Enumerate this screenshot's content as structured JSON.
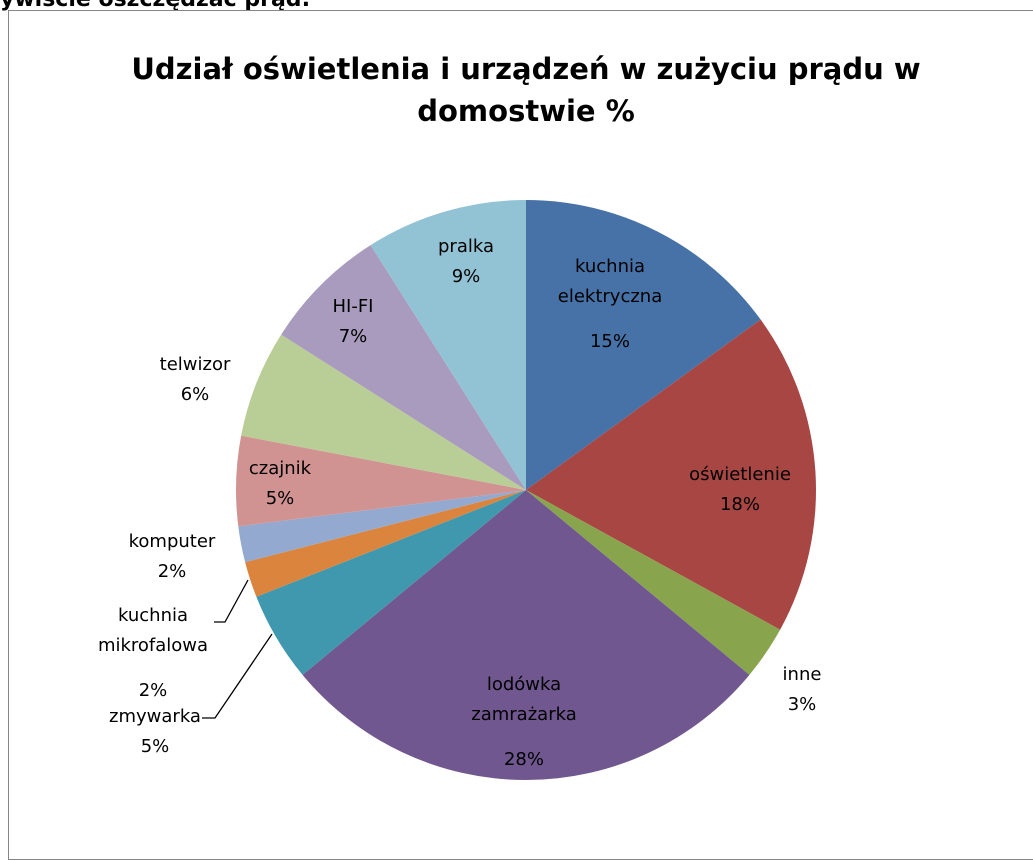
{
  "page_heading": "ywiście oszczędzać prąd:",
  "chart_data": {
    "type": "pie",
    "title": "Udział oświetlenia i urządzeń w zużyciu prądu w domostwie %",
    "categories": [
      "kuchnia elektryczna",
      "oświetlenie",
      "inne",
      "lodówka zamrażarka",
      "zmywarka",
      "kuchnia mikrofalowa",
      "komputer",
      "czajnik",
      "telwizor",
      "HI-FI",
      "pralka"
    ],
    "values": [
      15,
      18,
      3,
      28,
      5,
      2,
      2,
      5,
      6,
      7,
      9
    ],
    "value_labels": [
      "15%",
      "18%",
      "3%",
      "28%",
      "5%",
      "2%",
      "2%",
      "5%",
      "6%",
      "7%",
      "9%"
    ],
    "colors": [
      "#4672A8",
      "#A84644",
      "#88A54E",
      "#71578F",
      "#4098AE",
      "#DB843D",
      "#93A9D0",
      "#D09392",
      "#B9CD96",
      "#A99BBD",
      "#92C3D4"
    ]
  }
}
